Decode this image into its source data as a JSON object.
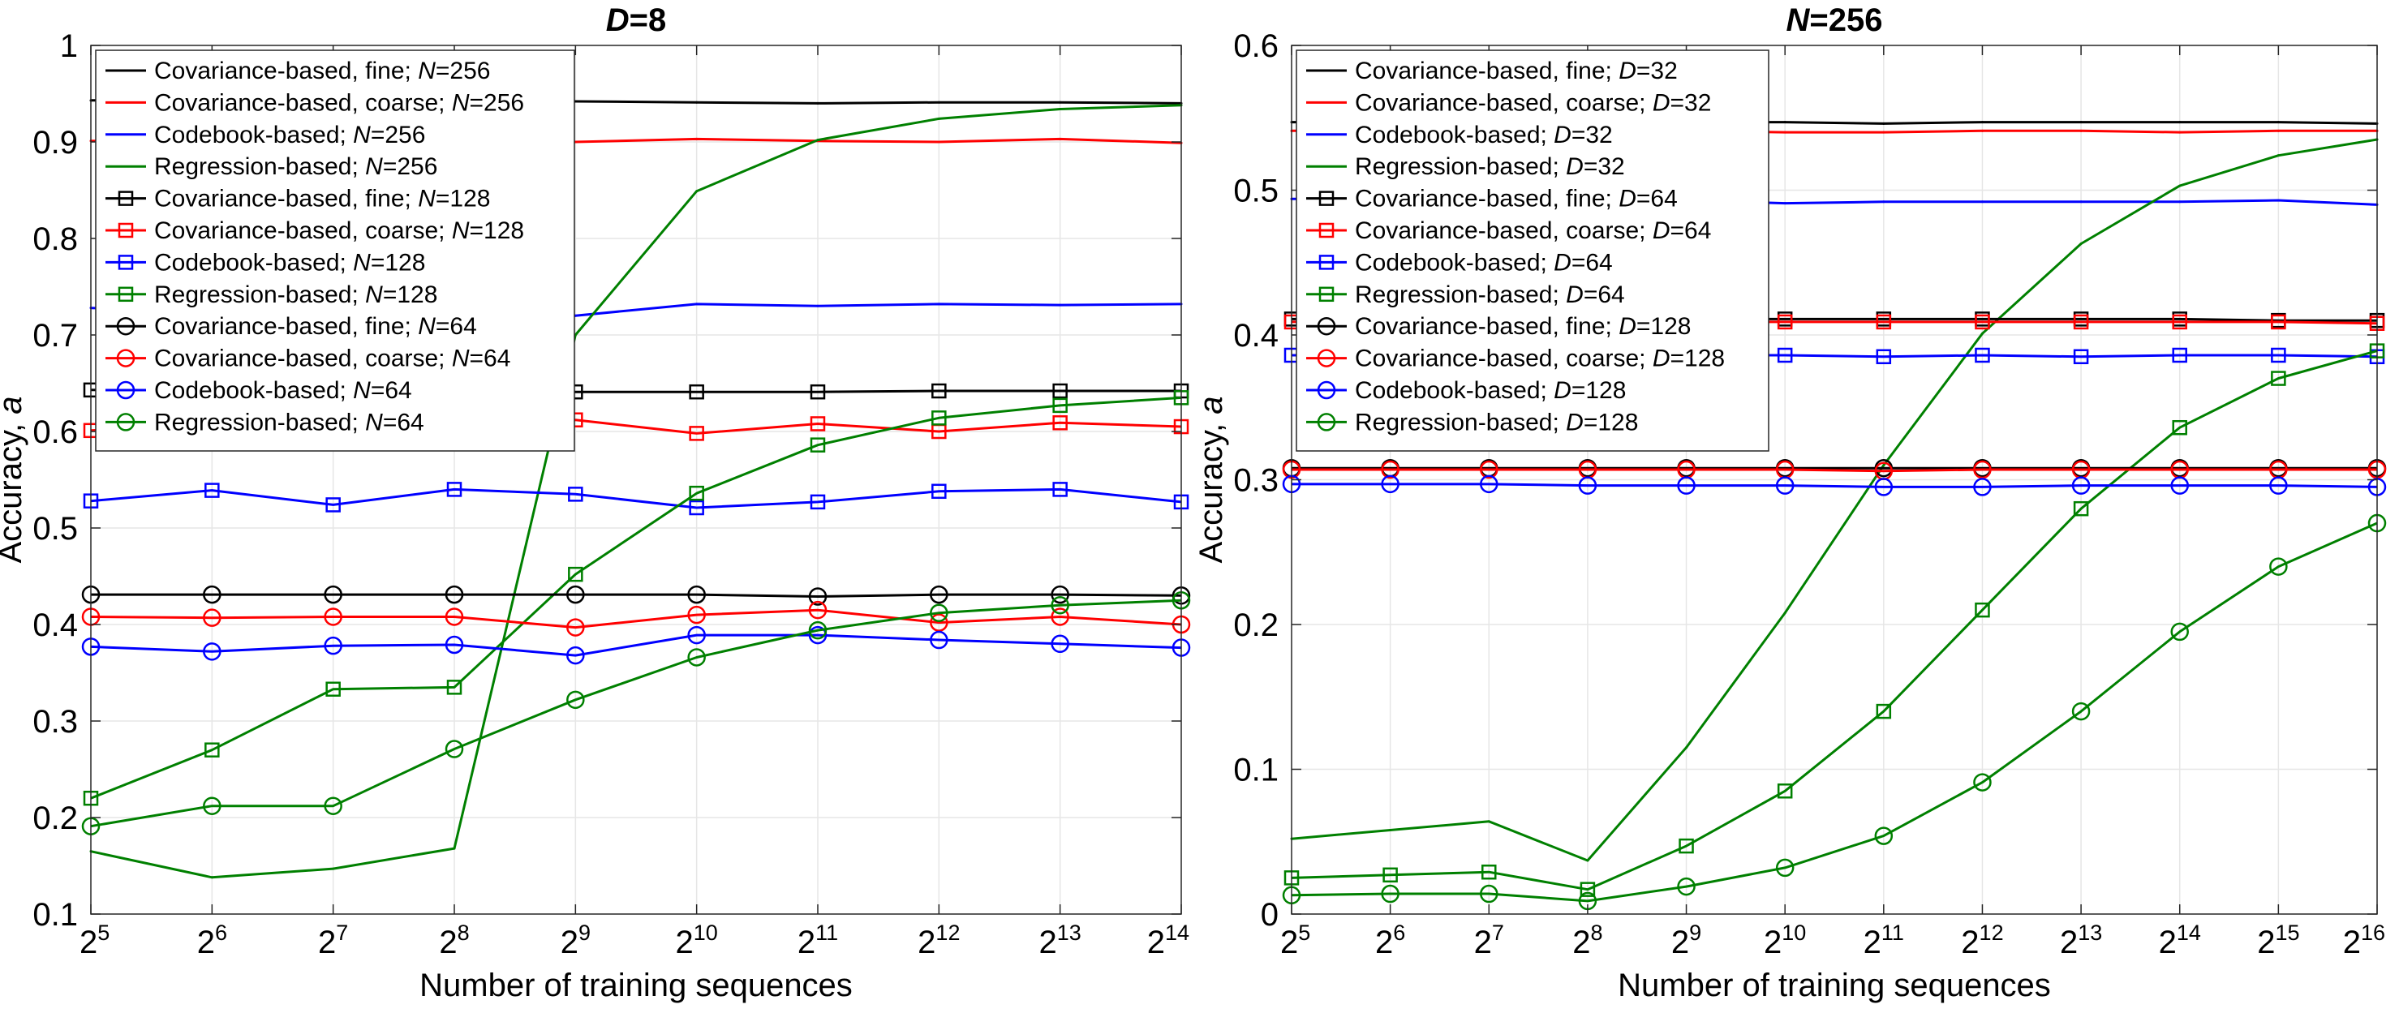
{
  "chart_data": [
    {
      "type": "line",
      "title": "D=8",
      "title_parts": {
        "var": "D",
        "rest": "=8"
      },
      "xlabel": "Number of training sequences",
      "ylabel": "Accuracy, a",
      "ylabel_parts": {
        "text": "Accuracy, ",
        "var": "a"
      },
      "x_base": "2",
      "x_exponents": [
        5,
        6,
        7,
        8,
        9,
        10,
        11,
        12,
        13,
        14
      ],
      "x_scale": "log2",
      "ylim": [
        0.1,
        1.0
      ],
      "yticks": [
        "0.1",
        "0.2",
        "0.3",
        "0.4",
        "0.5",
        "0.6",
        "0.7",
        "0.8",
        "0.9",
        "1"
      ],
      "grid": true,
      "legend_position": "top-left",
      "series": [
        {
          "label": "Covariance-based, fine; ",
          "var": "N",
          "val": "=256",
          "color": "#000000",
          "marker": "none",
          "values": [
            0.943,
            0.943,
            0.943,
            0.943,
            0.942,
            0.941,
            0.94,
            0.941,
            0.941,
            0.94
          ]
        },
        {
          "label": "Covariance-based, coarse; ",
          "var": "N",
          "val": "=256",
          "color": "#ff0000",
          "marker": "none",
          "values": [
            0.901,
            0.901,
            0.902,
            0.902,
            0.9,
            0.903,
            0.901,
            0.9,
            0.903,
            0.899
          ]
        },
        {
          "label": "Codebook-based; ",
          "var": "N",
          "val": "=256",
          "color": "#0000ff",
          "marker": "none",
          "values": [
            0.728,
            0.725,
            0.723,
            0.722,
            0.72,
            0.732,
            0.73,
            0.732,
            0.731,
            0.732
          ]
        },
        {
          "label": "Regression-based; ",
          "var": "N",
          "val": "=256",
          "color": "#008000",
          "marker": "none",
          "values": [
            0.165,
            0.138,
            0.147,
            0.168,
            0.7,
            0.849,
            0.902,
            0.924,
            0.934,
            0.938
          ]
        },
        {
          "label": "Covariance-based, fine; ",
          "var": "N",
          "val": "=128",
          "color": "#000000",
          "marker": "square",
          "values": [
            0.643,
            0.642,
            0.642,
            0.642,
            0.641,
            0.641,
            0.641,
            0.642,
            0.642,
            0.642
          ]
        },
        {
          "label": "Covariance-based, coarse; ",
          "var": "N",
          "val": "=128",
          "color": "#ff0000",
          "marker": "square",
          "values": [
            0.601,
            0.607,
            0.612,
            0.61,
            0.612,
            0.598,
            0.608,
            0.6,
            0.609,
            0.605
          ]
        },
        {
          "label": "Codebook-based; ",
          "var": "N",
          "val": "=128",
          "color": "#0000ff",
          "marker": "square",
          "values": [
            0.528,
            0.539,
            0.524,
            0.54,
            0.535,
            0.521,
            0.527,
            0.538,
            0.54,
            0.527
          ]
        },
        {
          "label": "Regression-based; ",
          "var": "N",
          "val": "=128",
          "color": "#008000",
          "marker": "square",
          "values": [
            0.22,
            0.27,
            0.333,
            0.335,
            0.452,
            0.536,
            0.586,
            0.614,
            0.627,
            0.635
          ]
        },
        {
          "label": "Covariance-based, fine; ",
          "var": "N",
          "val": "=64",
          "color": "#000000",
          "marker": "circle",
          "values": [
            0.431,
            0.431,
            0.431,
            0.431,
            0.431,
            0.431,
            0.429,
            0.431,
            0.431,
            0.43
          ]
        },
        {
          "label": "Covariance-based, coarse; ",
          "var": "N",
          "val": "=64",
          "color": "#ff0000",
          "marker": "circle",
          "values": [
            0.408,
            0.407,
            0.408,
            0.408,
            0.397,
            0.41,
            0.415,
            0.402,
            0.408,
            0.4
          ]
        },
        {
          "label": "Codebook-based; ",
          "var": "N",
          "val": "=64",
          "color": "#0000ff",
          "marker": "circle",
          "values": [
            0.377,
            0.372,
            0.378,
            0.379,
            0.368,
            0.389,
            0.389,
            0.384,
            0.38,
            0.376
          ]
        },
        {
          "label": "Regression-based; ",
          "var": "N",
          "val": "=64",
          "color": "#008000",
          "marker": "circle",
          "values": [
            0.191,
            0.212,
            0.212,
            0.271,
            0.322,
            0.366,
            0.394,
            0.412,
            0.42,
            0.425
          ]
        }
      ]
    },
    {
      "type": "line",
      "title": "N=256",
      "title_parts": {
        "var": "N",
        "rest": "=256"
      },
      "xlabel": "Number of training sequences",
      "ylabel": "Accuracy, a",
      "ylabel_parts": {
        "text": "Accuracy, ",
        "var": "a"
      },
      "x_base": "2",
      "x_exponents": [
        5,
        6,
        7,
        8,
        9,
        10,
        11,
        12,
        13,
        14,
        15,
        16
      ],
      "x_scale": "log2",
      "ylim": [
        0.0,
        0.6
      ],
      "yticks": [
        "0",
        "0.1",
        "0.2",
        "0.3",
        "0.4",
        "0.5",
        "0.6"
      ],
      "grid": true,
      "legend_position": "top-left",
      "series": [
        {
          "label": "Covariance-based, fine; ",
          "var": "D",
          "val": "=32",
          "color": "#000000",
          "marker": "none",
          "values": [
            0.547,
            0.547,
            0.547,
            0.547,
            0.547,
            0.547,
            0.546,
            0.547,
            0.547,
            0.547,
            0.547,
            0.546
          ]
        },
        {
          "label": "Covariance-based, coarse; ",
          "var": "D",
          "val": "=32",
          "color": "#ff0000",
          "marker": "none",
          "values": [
            0.541,
            0.541,
            0.541,
            0.541,
            0.541,
            0.54,
            0.54,
            0.541,
            0.541,
            0.54,
            0.541,
            0.541
          ]
        },
        {
          "label": "Codebook-based; ",
          "var": "D",
          "val": "=32",
          "color": "#0000ff",
          "marker": "none",
          "values": [
            0.494,
            0.494,
            0.494,
            0.494,
            0.493,
            0.491,
            0.492,
            0.492,
            0.492,
            0.492,
            0.493,
            0.49
          ]
        },
        {
          "label": "Regression-based; ",
          "var": "D",
          "val": "=32",
          "color": "#008000",
          "marker": "none",
          "values": [
            0.052,
            0.058,
            0.064,
            0.037,
            0.115,
            0.208,
            0.31,
            0.401,
            0.463,
            0.503,
            0.524,
            0.535
          ]
        },
        {
          "label": "Covariance-based, fine; ",
          "var": "D",
          "val": "=64",
          "color": "#000000",
          "marker": "square",
          "values": [
            0.411,
            0.411,
            0.411,
            0.411,
            0.411,
            0.411,
            0.411,
            0.411,
            0.411,
            0.411,
            0.41,
            0.41
          ]
        },
        {
          "label": "Covariance-based, coarse; ",
          "var": "D",
          "val": "=64",
          "color": "#ff0000",
          "marker": "square",
          "values": [
            0.409,
            0.409,
            0.409,
            0.409,
            0.409,
            0.409,
            0.409,
            0.409,
            0.409,
            0.409,
            0.409,
            0.408
          ]
        },
        {
          "label": "Codebook-based; ",
          "var": "D",
          "val": "=64",
          "color": "#0000ff",
          "marker": "square",
          "values": [
            0.386,
            0.386,
            0.386,
            0.386,
            0.386,
            0.386,
            0.385,
            0.386,
            0.385,
            0.386,
            0.386,
            0.385
          ]
        },
        {
          "label": "Regression-based; ",
          "var": "D",
          "val": "=64",
          "color": "#008000",
          "marker": "square",
          "values": [
            0.025,
            0.027,
            0.029,
            0.017,
            0.047,
            0.085,
            0.14,
            0.21,
            0.28,
            0.336,
            0.37,
            0.389
          ]
        },
        {
          "label": "Covariance-based, fine; ",
          "var": "D",
          "val": "=128",
          "color": "#000000",
          "marker": "circle",
          "values": [
            0.308,
            0.308,
            0.308,
            0.308,
            0.308,
            0.308,
            0.308,
            0.308,
            0.308,
            0.308,
            0.308,
            0.308
          ]
        },
        {
          "label": "Covariance-based, coarse; ",
          "var": "D",
          "val": "=128",
          "color": "#ff0000",
          "marker": "circle",
          "values": [
            0.307,
            0.307,
            0.307,
            0.307,
            0.307,
            0.307,
            0.306,
            0.307,
            0.307,
            0.307,
            0.307,
            0.307
          ]
        },
        {
          "label": "Codebook-based; ",
          "var": "D",
          "val": "=128",
          "color": "#0000ff",
          "marker": "circle",
          "values": [
            0.297,
            0.297,
            0.297,
            0.296,
            0.296,
            0.296,
            0.295,
            0.295,
            0.296,
            0.296,
            0.296,
            0.295
          ]
        },
        {
          "label": "Regression-based; ",
          "var": "D",
          "val": "=128",
          "color": "#008000",
          "marker": "circle",
          "values": [
            0.013,
            0.014,
            0.014,
            0.009,
            0.019,
            0.032,
            0.054,
            0.091,
            0.14,
            0.195,
            0.24,
            0.27
          ]
        }
      ]
    }
  ]
}
